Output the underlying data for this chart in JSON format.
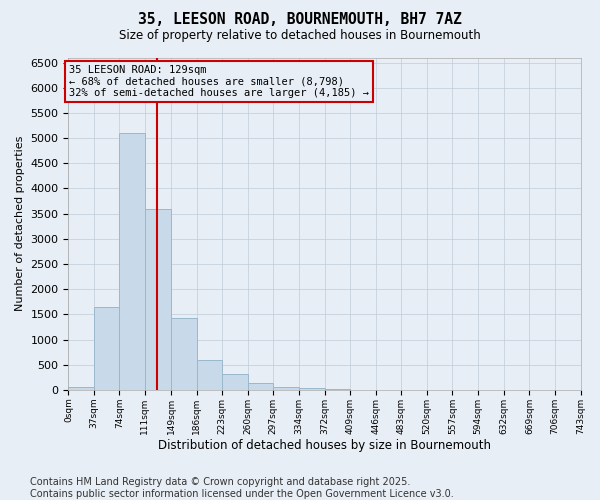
{
  "title": "35, LEESON ROAD, BOURNEMOUTH, BH7 7AZ",
  "subtitle": "Size of property relative to detached houses in Bournemouth",
  "xlabel": "Distribution of detached houses by size in Bournemouth",
  "ylabel": "Number of detached properties",
  "bar_color": "#c8daea",
  "bar_edge_color": "#9ab8cc",
  "grid_color": "#c0ccd8",
  "background_color": "#e8eef5",
  "vline_x": 129,
  "vline_color": "#cc0000",
  "annotation_title": "35 LEESON ROAD: 129sqm",
  "annotation_line1": "← 68% of detached houses are smaller (8,798)",
  "annotation_line2": "32% of semi-detached houses are larger (4,185) →",
  "bins": [
    0,
    37,
    74,
    111,
    149,
    186,
    223,
    260,
    297,
    334,
    372,
    409,
    446,
    483,
    520,
    557,
    594,
    632,
    669,
    706,
    743
  ],
  "counts": [
    60,
    1650,
    5100,
    3600,
    1420,
    600,
    310,
    130,
    50,
    30,
    10,
    5,
    0,
    0,
    0,
    0,
    0,
    0,
    0,
    0
  ],
  "ylim": [
    0,
    6600
  ],
  "yticks": [
    0,
    500,
    1000,
    1500,
    2000,
    2500,
    3000,
    3500,
    4000,
    4500,
    5000,
    5500,
    6000,
    6500
  ],
  "footer": "Contains HM Land Registry data © Crown copyright and database right 2025.\nContains public sector information licensed under the Open Government Licence v3.0.",
  "title_fontsize": 10.5,
  "subtitle_fontsize": 8.5,
  "ylabel_fontsize": 8,
  "xlabel_fontsize": 8.5,
  "tick_fontsize": 8,
  "xtick_fontsize": 6.5,
  "footer_fontsize": 7,
  "annot_fontsize": 7.5
}
